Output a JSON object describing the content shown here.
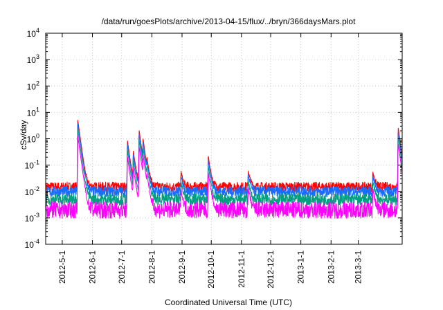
{
  "chart_data": {
    "type": "line",
    "title": "/data/run/goesPlots/archive/2013-04-15/flux/../bryn/366daysMars.plot",
    "xlabel": "Coordinated Universal Time (UTC)",
    "ylabel": "cSv/day",
    "yscale": "log",
    "ylim": [
      0.0001,
      10000
    ],
    "xlim": [
      "2012-04-14",
      "2013-04-15"
    ],
    "grid": true,
    "legend": "none",
    "y_ticks": [
      {
        "value": 0.0001,
        "base": "10",
        "exp": "-4"
      },
      {
        "value": 0.001,
        "base": "10",
        "exp": "-3"
      },
      {
        "value": 0.01,
        "base": "10",
        "exp": "-2"
      },
      {
        "value": 0.1,
        "base": "10",
        "exp": "-1"
      },
      {
        "value": 1,
        "base": "10",
        "exp": "0"
      },
      {
        "value": 10,
        "base": "10",
        "exp": "1"
      },
      {
        "value": 100,
        "base": "10",
        "exp": "2"
      },
      {
        "value": 1000,
        "base": "10",
        "exp": "3"
      },
      {
        "value": 10000,
        "base": "10",
        "exp": "4"
      }
    ],
    "x_ticks": [
      "2012-5-1",
      "2012-6-1",
      "2012-7-1",
      "2012-8-1",
      "2012-9-1",
      "2012-10-1",
      "2012-11-1",
      "2012-12-1",
      "2013-1-1",
      "2013-2-1",
      "2013-3-1"
    ],
    "x_tick_dates": [
      "2012-05-01",
      "2012-06-01",
      "2012-07-01",
      "2012-08-01",
      "2012-09-01",
      "2012-10-01",
      "2012-11-01",
      "2012-12-01",
      "2013-01-01",
      "2013-02-01",
      "2013-03-01"
    ],
    "baseline_levels": {
      "red": 0.015,
      "blue": 0.01,
      "teal": 0.005,
      "magenta": 0.002
    },
    "events": [
      {
        "date": "2012-05-17",
        "peak": 5
      },
      {
        "date": "2012-07-07",
        "peak": 0.8
      },
      {
        "date": "2012-07-13",
        "peak": 0.3
      },
      {
        "date": "2012-07-19",
        "peak": 2
      },
      {
        "date": "2012-07-23",
        "peak": 0.8
      },
      {
        "date": "2012-07-27",
        "peak": 0.1
      },
      {
        "date": "2012-08-31",
        "peak": 0.04
      },
      {
        "date": "2012-09-28",
        "peak": 0.2
      },
      {
        "date": "2012-11-08",
        "peak": 0.045
      },
      {
        "date": "2013-03-16",
        "peak": 0.04
      },
      {
        "date": "2013-04-11",
        "peak": 2.5
      }
    ],
    "series": [
      {
        "color": "#ff0000",
        "ratio": 1.0
      },
      {
        "color": "#1a6cff",
        "ratio": 0.75
      },
      {
        "color": "#00a080",
        "ratio": 0.45
      },
      {
        "color": "#ff00ff",
        "ratio": 0.25
      }
    ]
  }
}
